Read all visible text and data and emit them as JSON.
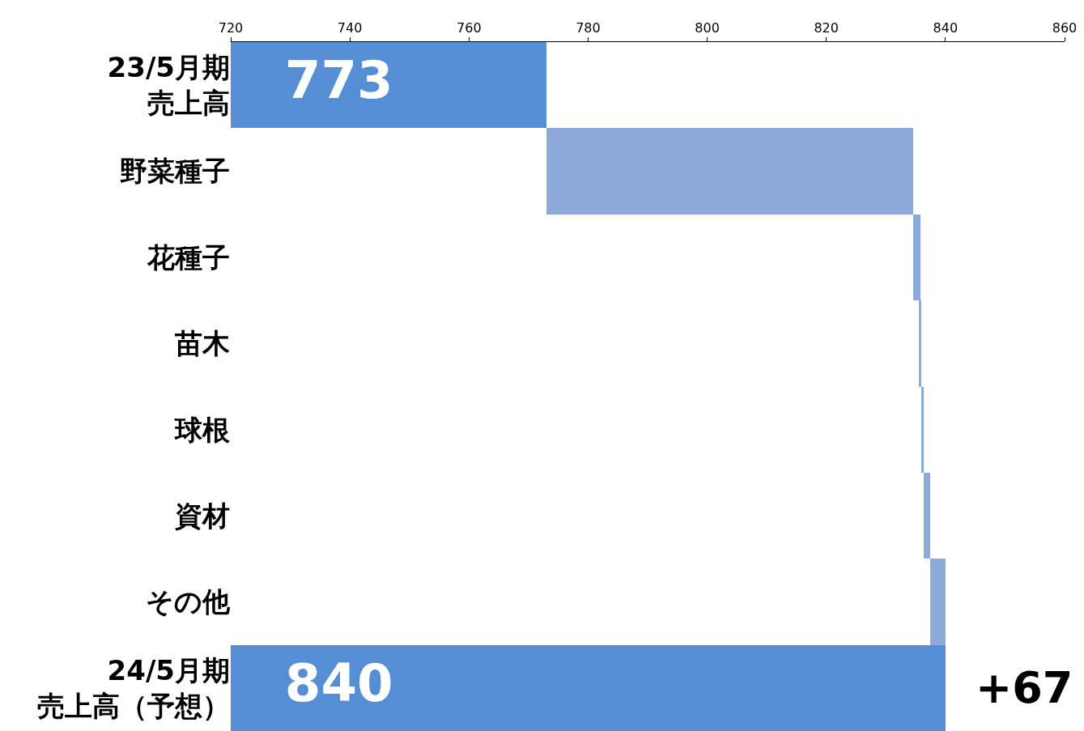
{
  "chart_data": {
    "type": "bar",
    "orientation": "horizontal",
    "categories": [
      "23/5月期売上高",
      "野菜種子",
      "花種子",
      "苗木",
      "球根",
      "資材",
      "その他",
      "24/5月期売上高（予想）"
    ],
    "values": [
      773,
      61.6,
      1.2,
      0.4,
      0.3,
      1.1,
      2.6,
      840
    ],
    "base": [
      null,
      773,
      834.6,
      835.6,
      836.0,
      836.3,
      837.4,
      null
    ],
    "colors": [
      "#558ed5",
      "#8eaadb",
      "#8eaadb",
      "#8eaadb",
      "#8eaadb",
      "#8eaadb",
      "#8eaadb",
      "#558ed5"
    ],
    "value_labels": [
      "773",
      null,
      null,
      null,
      null,
      null,
      null,
      "840"
    ],
    "xlim": [
      720,
      860
    ],
    "xticks": [
      720,
      740,
      760,
      780,
      800,
      820,
      840,
      860
    ],
    "annotations": [
      "+67"
    ]
  }
}
